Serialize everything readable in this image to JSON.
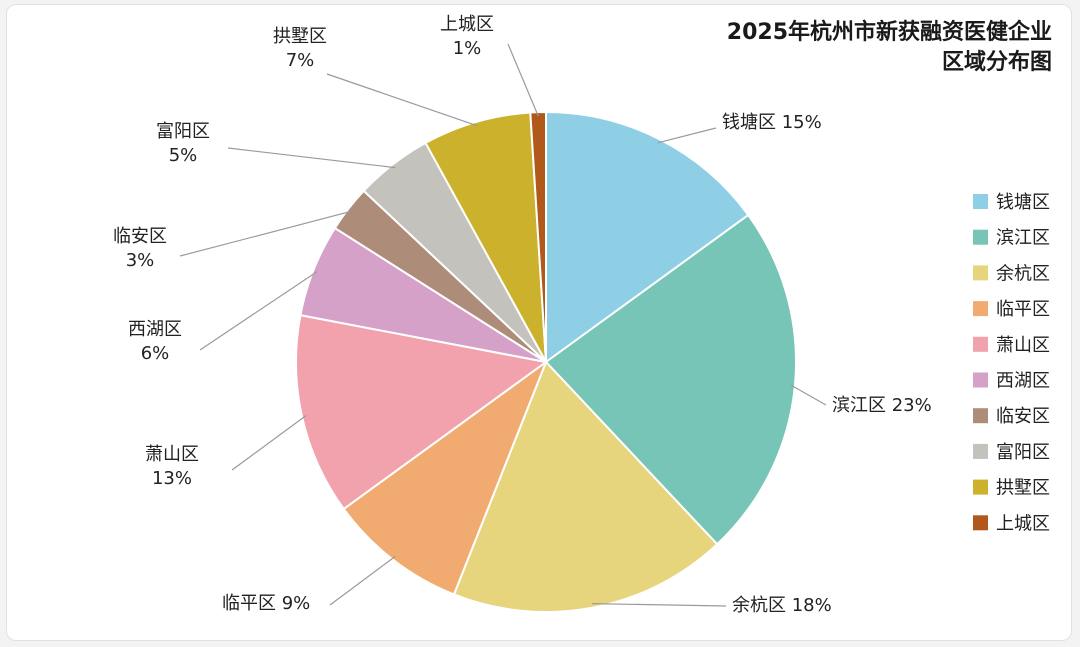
{
  "title_line1": "2025年杭州市新获融资医健企业",
  "title_line2": "区域分布图",
  "chart_data": {
    "type": "pie",
    "title": "2025年杭州市新获融资医健企业区域分布图",
    "legend_position": "right",
    "categories": [
      "钱塘区",
      "滨江区",
      "余杭区",
      "临平区",
      "萧山区",
      "西湖区",
      "临安区",
      "富阳区",
      "拱墅区",
      "上城区"
    ],
    "values": [
      15,
      23,
      18,
      9,
      13,
      6,
      3,
      5,
      7,
      1
    ],
    "labels": [
      "钱塘区 15%",
      "滨江区 23%",
      "余杭区 18%",
      "临平区 9%",
      "萧山区\n13%",
      "西湖区\n6%",
      "临安区\n3%",
      "富阳区\n5%",
      "拱墅区\n7%",
      "上城区\n1%"
    ],
    "colors": [
      "#8ecfe6",
      "#76c5b6",
      "#e6d57c",
      "#f1ab71",
      "#f2a2ad",
      "#d5a1c9",
      "#ad8d7a",
      "#c3c2bc",
      "#ccb12c",
      "#b0591b"
    ]
  }
}
